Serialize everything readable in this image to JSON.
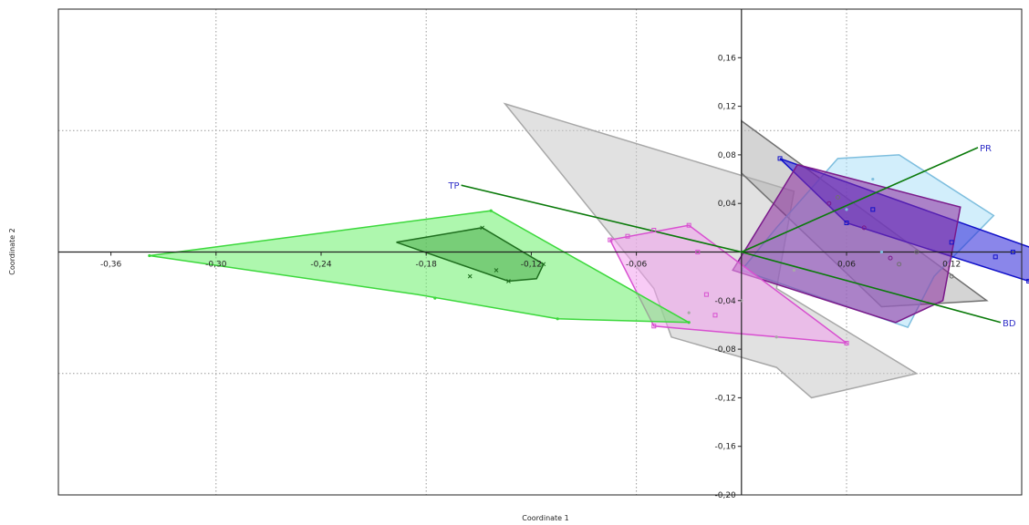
{
  "chart_data": {
    "type": "scatter",
    "xlabel": "Coordinate 1",
    "ylabel": "Coordinate 2",
    "xlim": [
      -0.39,
      0.16
    ],
    "ylim": [
      -0.2,
      0.2
    ],
    "x_ticks": [
      -0.36,
      -0.3,
      -0.24,
      -0.18,
      -0.12,
      -0.06,
      0.06,
      0.12
    ],
    "x_tick_labels": [
      "-0,36",
      "-0,30",
      "-0,24",
      "-0,18",
      "-0,12",
      "-0,06",
      "0,06",
      "0,12"
    ],
    "y_ticks": [
      0.16,
      0.12,
      0.08,
      0.04,
      -0.04,
      -0.08,
      -0.12,
      -0.16,
      -0.2
    ],
    "y_tick_labels": [
      "0,16",
      "0,12",
      "0,08",
      "0,04",
      "-0,04",
      "-0,08",
      "-0,12",
      "-0,16",
      "-0,20"
    ],
    "grid_x": [
      -0.3,
      -0.18,
      -0.06,
      0.06
    ],
    "grid_y": [
      0.1,
      -0.1
    ],
    "grid": "dotted",
    "groups": [
      {
        "color": "#c8c8c8",
        "stroke": "#a8a8a8",
        "hull": [
          [
            -0.135,
            0.122
          ],
          [
            0.03,
            0.05
          ],
          [
            0.02,
            -0.03
          ],
          [
            0.1,
            -0.1
          ],
          [
            0.04,
            -0.12
          ],
          [
            0.02,
            -0.095
          ],
          [
            -0.04,
            -0.07
          ],
          [
            -0.05,
            -0.03
          ]
        ],
        "points": [
          [
            0.02,
            -0.07
          ],
          [
            0.0,
            -0.04
          ],
          [
            0.03,
            -0.015
          ],
          [
            -0.03,
            -0.05
          ]
        ],
        "marker": "dot"
      },
      {
        "color": "#b0b0b0",
        "stroke": "#707070",
        "hull": [
          [
            0.0,
            0.108
          ],
          [
            0.14,
            -0.04
          ],
          [
            0.08,
            -0.045
          ],
          [
            0.0,
            0.065
          ]
        ],
        "points": [
          [
            0.055,
            0.045
          ],
          [
            0.09,
            -0.01
          ],
          [
            0.1,
            0.0
          ],
          [
            0.12,
            -0.02
          ]
        ],
        "marker": "circle"
      },
      {
        "color": "#ade0f7",
        "stroke": "#7ebede",
        "hull": [
          [
            0.055,
            0.077
          ],
          [
            0.09,
            0.08
          ],
          [
            0.144,
            0.03
          ],
          [
            0.11,
            -0.02
          ],
          [
            0.095,
            -0.062
          ],
          [
            0.0,
            -0.015
          ],
          [
            0.02,
            0.02
          ]
        ],
        "points": [
          [
            0.075,
            0.06
          ],
          [
            0.08,
            0.0
          ],
          [
            0.06,
            0.035
          ]
        ],
        "marker": "dot"
      },
      {
        "color": "#2a22d8",
        "stroke": "#1010c8",
        "hull": [
          [
            0.022,
            0.077
          ],
          [
            0.188,
            -0.008
          ],
          [
            0.164,
            -0.024
          ],
          [
            0.06,
            0.024
          ]
        ],
        "points": [
          [
            0.022,
            0.077
          ],
          [
            0.06,
            0.024
          ],
          [
            0.145,
            -0.004
          ],
          [
            0.164,
            -0.024
          ],
          [
            0.185,
            -0.008
          ],
          [
            0.12,
            0.008
          ],
          [
            0.155,
            0.0
          ],
          [
            0.175,
            -0.012
          ],
          [
            0.075,
            0.035
          ]
        ],
        "marker": "square"
      },
      {
        "color": "#8a2a9e",
        "stroke": "#7a1a8a",
        "hull": [
          [
            0.032,
            0.072
          ],
          [
            0.125,
            0.037
          ],
          [
            0.115,
            -0.04
          ],
          [
            0.088,
            -0.058
          ],
          [
            -0.005,
            -0.015
          ]
        ],
        "points": [
          [
            0.05,
            0.04
          ],
          [
            0.085,
            -0.005
          ],
          [
            0.07,
            0.02
          ]
        ],
        "marker": "circle"
      },
      {
        "color": "#f2a0ee",
        "stroke": "#d850d0",
        "hull": [
          [
            -0.075,
            0.01
          ],
          [
            -0.03,
            0.022
          ],
          [
            0.06,
            -0.075
          ],
          [
            -0.05,
            -0.061
          ]
        ],
        "points": [
          [
            -0.075,
            0.01
          ],
          [
            -0.03,
            0.022
          ],
          [
            0.06,
            -0.075
          ],
          [
            -0.05,
            -0.061
          ],
          [
            -0.065,
            0.013
          ],
          [
            -0.05,
            0.018
          ],
          [
            -0.025,
            0.0
          ],
          [
            -0.02,
            -0.035
          ],
          [
            -0.015,
            -0.052
          ]
        ],
        "marker": "square"
      },
      {
        "color": "#6cf06c",
        "stroke": "#3cd83c",
        "hull": [
          [
            -0.338,
            -0.003
          ],
          [
            -0.143,
            0.034
          ],
          [
            -0.03,
            -0.058
          ],
          [
            -0.105,
            -0.055
          ],
          [
            -0.185,
            -0.035
          ]
        ],
        "points": [
          [
            -0.338,
            -0.003
          ],
          [
            -0.143,
            0.034
          ],
          [
            -0.03,
            -0.058
          ],
          [
            -0.105,
            -0.055
          ],
          [
            -0.175,
            -0.038
          ]
        ],
        "marker": "dot"
      },
      {
        "color": "#4cad4c",
        "stroke": "#1e6e1e",
        "hull": [
          [
            -0.197,
            0.008
          ],
          [
            -0.148,
            0.02
          ],
          [
            -0.113,
            -0.01
          ],
          [
            -0.117,
            -0.022
          ],
          [
            -0.133,
            -0.024
          ]
        ],
        "points": [
          [
            -0.148,
            0.02
          ],
          [
            -0.113,
            -0.01
          ],
          [
            -0.133,
            -0.024
          ],
          [
            -0.155,
            -0.02
          ],
          [
            -0.14,
            -0.015
          ]
        ],
        "marker": "x"
      }
    ],
    "vectors": [
      {
        "label": "PR",
        "x": 0.135,
        "y": 0.086,
        "color": "#0a7a0a",
        "label_color": "#3030c8"
      },
      {
        "label": "TP",
        "x": -0.16,
        "y": 0.055,
        "color": "#0a7a0a",
        "label_color": "#3030c8"
      },
      {
        "label": "BD",
        "x": 0.148,
        "y": -0.058,
        "color": "#0a7a0a",
        "label_color": "#3030c8"
      }
    ]
  }
}
